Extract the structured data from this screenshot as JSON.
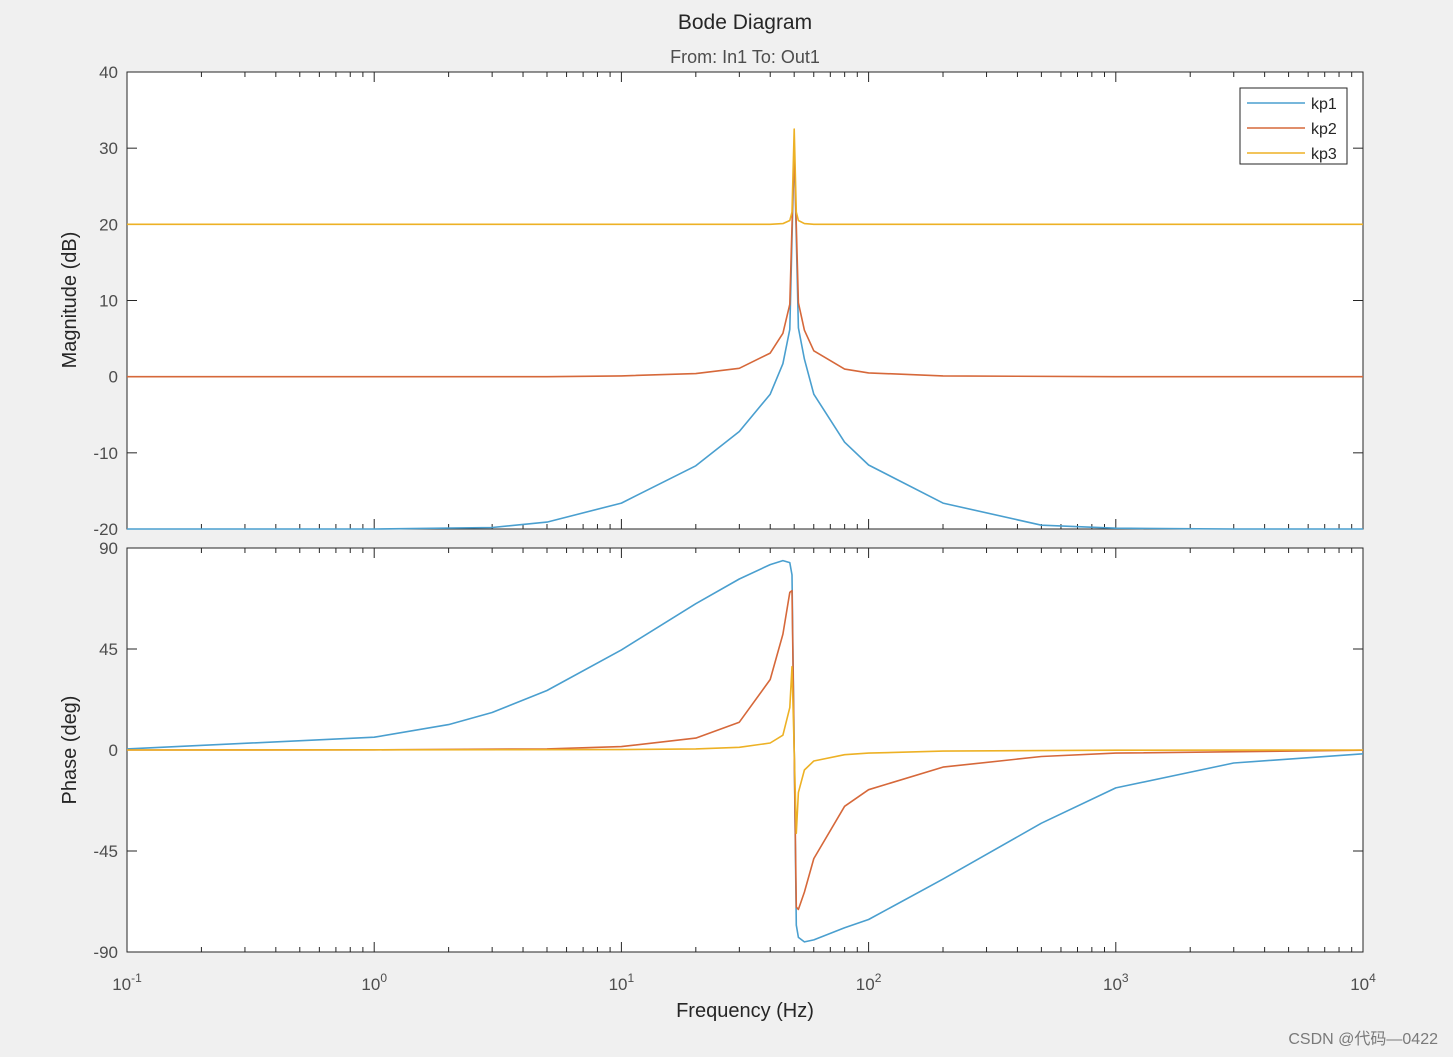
{
  "chart_data": {
    "type": "line",
    "title": "Bode Diagram",
    "subtitle": "From: In1  To: Out1",
    "xlabel": "Frequency  (Hz)",
    "xscale": "log",
    "xlim": [
      0.1,
      10000
    ],
    "x_ticks": [
      {
        "base": "10",
        "exp": "-1",
        "value": 0.1
      },
      {
        "base": "10",
        "exp": "0",
        "value": 1
      },
      {
        "base": "10",
        "exp": "1",
        "value": 10
      },
      {
        "base": "10",
        "exp": "2",
        "value": 100
      },
      {
        "base": "10",
        "exp": "3",
        "value": 1000
      },
      {
        "base": "10",
        "exp": "4",
        "value": 10000
      }
    ],
    "legend": {
      "location": "top-right",
      "entries": [
        "kp1",
        "kp2",
        "kp3"
      ]
    },
    "grid": false,
    "resonance_hz": 50,
    "panels": [
      {
        "name": "magnitude",
        "ylabel": "Magnitude (dB)",
        "ylim": [
          -20,
          40
        ],
        "y_ticks": [
          40,
          30,
          20,
          10,
          0,
          -10,
          -20
        ],
        "series": [
          {
            "name": "kp1",
            "color": "#4a9fcf",
            "x": [
              0.1,
              1,
              3,
              5,
              10,
              20,
              30,
              40,
              45,
              48,
              50,
              52,
              55,
              60,
              80,
              100,
              200,
              500,
              1000,
              3000,
              10000
            ],
            "y": [
              -20,
              -20,
              -19.8,
              -19.1,
              -16.6,
              -11.7,
              -7.2,
              -2.3,
              1.7,
              6.2,
              30,
              6.4,
              2.3,
              -2.3,
              -8.6,
              -11.6,
              -16.6,
              -19.5,
              -19.9,
              -20,
              -20
            ]
          },
          {
            "name": "kp2",
            "color": "#d6683a",
            "x": [
              0.1,
              1,
              5,
              10,
              20,
              30,
              40,
              45,
              48,
              50,
              52,
              55,
              60,
              80,
              100,
              200,
              1000,
              10000
            ],
            "y": [
              0,
              0,
              0,
              0.1,
              0.4,
              1.1,
              3.1,
              5.7,
              9.5,
              30,
              9.7,
              6.1,
              3.4,
              1,
              0.5,
              0.1,
              0,
              0
            ]
          },
          {
            "name": "kp3",
            "color": "#edb125",
            "x": [
              0.1,
              10,
              40,
              45,
              48,
              49,
              50,
              51,
              52,
              55,
              60,
              100,
              10000
            ],
            "y": [
              20,
              20,
              20,
              20.1,
              20.5,
              21.6,
              32.5,
              21.6,
              20.5,
              20.1,
              20,
              20,
              20
            ]
          }
        ]
      },
      {
        "name": "phase",
        "ylabel": "Phase (deg)",
        "ylim": [
          -90,
          90
        ],
        "y_ticks": [
          90,
          45,
          0,
          -45,
          -90
        ],
        "series": [
          {
            "name": "kp1",
            "color": "#4a9fcf",
            "x": [
              0.1,
              1,
              2,
              3,
              5,
              10,
              20,
              30,
              40,
              45,
              48,
              49,
              50,
              51,
              52,
              55,
              60,
              80,
              100,
              200,
              500,
              1000,
              3000,
              10000
            ],
            "y": [
              0.5,
              5.7,
              11.3,
              16.7,
              26.5,
              44.6,
              65.2,
              76.2,
              82.6,
              84.4,
              83.5,
              78,
              0,
              -78,
              -83.5,
              -85.5,
              -84.6,
              -79.2,
              -75.5,
              -57.5,
              -32.6,
              -16.9,
              -5.8,
              -1.7
            ]
          },
          {
            "name": "kp2",
            "color": "#d6683a",
            "x": [
              0.1,
              1,
              5,
              10,
              20,
              30,
              40,
              45,
              48,
              49,
              50,
              51,
              52,
              55,
              60,
              80,
              100,
              200,
              500,
              1000,
              10000
            ],
            "y": [
              0,
              0.1,
              0.5,
              1.5,
              5.3,
              12.4,
              31.4,
              51.6,
              70.2,
              71,
              0,
              -70,
              -71,
              -63.3,
              -48.4,
              -25.1,
              -17.7,
              -7.6,
              -2.9,
              -1.4,
              -0.1
            ]
          },
          {
            "name": "kp3",
            "color": "#edb125",
            "x": [
              0.1,
              10,
              20,
              30,
              40,
              45,
              48,
              49,
              50,
              51,
              52,
              55,
              60,
              80,
              100,
              200,
              1000,
              10000
            ],
            "y": [
              0,
              0.2,
              0.5,
              1.2,
              3.1,
              6.6,
              18.9,
              37.1,
              0,
              -37.1,
              -18.9,
              -8.9,
              -4.9,
              -2.1,
              -1.4,
              -0.5,
              -0.1,
              0
            ]
          }
        ]
      }
    ]
  },
  "watermark": "CSDN @代码—0422"
}
